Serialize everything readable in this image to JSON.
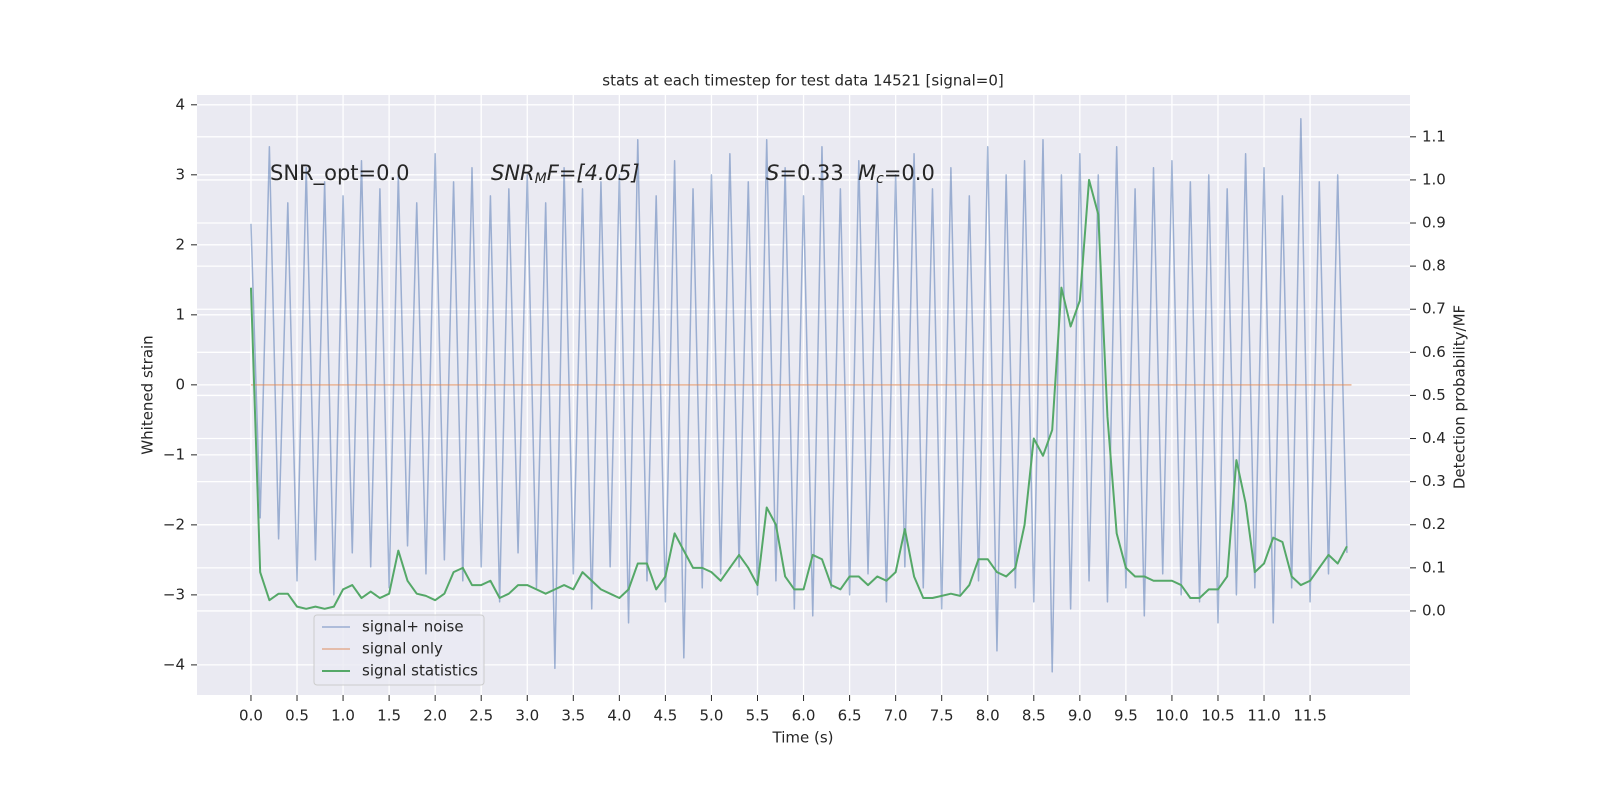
{
  "chart_data": {
    "type": "line",
    "title": "stats at each timestep for test data 14521 [signal=0]",
    "xlabel": "Time (s)",
    "ylabel": "Whitened strain",
    "y2label": "Detection probability/MF",
    "annotations": [
      [
        "SNR_opt=0.0"
      ],
      [
        "SNR",
        "M",
        "F=[4.05]"
      ],
      [
        "S",
        "=0.33"
      ],
      [
        "M",
        "c",
        "=0.0"
      ]
    ],
    "legend": "lower left",
    "grid": true,
    "xlim": [
      -0.586,
      12.585
    ],
    "ylim": [
      -4.43,
      4.14
    ],
    "y2lim": [
      -0.195,
      1.197
    ],
    "xticks": [
      {
        "value": 0,
        "label": "0.0"
      },
      0.5,
      {
        "value": 1,
        "label": "1.0"
      },
      1.5,
      {
        "value": 2,
        "label": "2.0"
      },
      2.5,
      {
        "value": 3,
        "label": "3.0"
      },
      3.5,
      {
        "value": 4,
        "label": "4.0"
      },
      4.5,
      {
        "value": 5,
        "label": "5.0"
      },
      5.5,
      {
        "value": 6,
        "label": "6.0"
      },
      6.5,
      {
        "value": 7,
        "label": "7.0"
      },
      7.5,
      {
        "value": 8,
        "label": "8.0"
      },
      8.5,
      {
        "value": 9,
        "label": "9.0"
      },
      9.5,
      {
        "value": 10,
        "label": "10.0"
      },
      10.5,
      {
        "value": 11,
        "label": "11.0"
      },
      11.5
    ],
    "yticks": [
      {
        "value": -4,
        "label": "−4"
      },
      {
        "value": -3,
        "label": "−3"
      },
      {
        "value": -2,
        "label": "−2"
      },
      {
        "value": -1,
        "label": "−1"
      },
      0,
      1,
      2,
      3,
      4
    ],
    "y2ticks": [
      {
        "value": 0,
        "label": "0.0"
      },
      0.1,
      0.2,
      0.3,
      0.4,
      0.5,
      0.6,
      0.7,
      0.8,
      0.9,
      {
        "value": 1,
        "label": "1.0"
      },
      1.1
    ],
    "x": [
      0,
      0.1,
      0.2,
      0.3,
      0.4,
      0.5,
      0.6,
      0.7,
      0.8,
      0.9,
      1,
      1.1,
      1.2,
      1.3,
      1.4,
      1.5,
      1.6,
      1.7,
      1.8,
      1.9,
      2,
      2.1,
      2.2,
      2.3,
      2.4,
      2.5,
      2.6,
      2.7,
      2.8,
      2.9,
      3,
      3.1,
      3.2,
      3.3,
      3.4,
      3.5,
      3.6,
      3.7,
      3.8,
      3.9,
      4,
      4.1,
      4.2,
      4.3,
      4.4,
      4.5,
      4.6,
      4.7,
      4.8,
      4.9,
      5,
      5.1,
      5.2,
      5.3,
      5.4,
      5.5,
      5.6,
      5.7,
      5.8,
      5.9,
      6,
      6.1,
      6.2,
      6.3,
      6.4,
      6.5,
      6.6,
      6.7,
      6.8,
      6.9,
      7,
      7.1,
      7.2,
      7.3,
      7.4,
      7.5,
      7.6,
      7.7,
      7.8,
      7.9,
      8,
      8.1,
      8.2,
      8.3,
      8.4,
      8.5,
      8.6,
      8.7,
      8.8,
      8.9,
      9,
      9.1,
      9.2,
      9.3,
      9.4,
      9.5,
      9.6,
      9.7,
      9.8,
      9.9,
      10,
      10.1,
      10.2,
      10.3,
      10.4,
      10.5,
      10.6,
      10.7,
      10.8,
      10.9,
      11,
      11.1,
      11.2,
      11.3,
      11.4,
      11.5,
      11.6,
      11.7,
      11.8,
      11.9
    ],
    "series": [
      {
        "name": "signal+ noise",
        "color": "#4c72b0",
        "values": [
          2.3,
          -1.9,
          3.4,
          -2.2,
          2.6,
          -2.8,
          3.1,
          -2.5,
          2.9,
          -3.0,
          2.7,
          -2.4,
          3.2,
          -2.6,
          2.8,
          -2.9,
          3.0,
          -2.3,
          2.6,
          -2.7,
          3.3,
          -2.5,
          2.9,
          -2.8,
          3.1,
          -2.6,
          2.7,
          -3.1,
          2.8,
          -2.4,
          3.0,
          -2.9,
          2.6,
          -4.05,
          3.1,
          -2.7,
          2.8,
          -3.2,
          2.9,
          -2.6,
          3.0,
          -3.4,
          3.5,
          -2.8,
          2.7,
          -3.1,
          3.2,
          -3.9,
          2.8,
          -2.9,
          3.0,
          -2.7,
          3.3,
          -2.6,
          2.9,
          -3.0,
          3.5,
          -2.8,
          3.1,
          -3.2,
          2.7,
          -3.3,
          3.4,
          -2.9,
          2.8,
          -3.0,
          3.2,
          -2.7,
          2.9,
          -3.1,
          3.0,
          -2.6,
          3.3,
          -2.9,
          2.8,
          -3.2,
          3.1,
          -3.0,
          2.7,
          -2.8,
          3.4,
          -3.8,
          3.0,
          -2.9,
          3.2,
          -3.1,
          3.5,
          -4.1,
          3.0,
          -3.2,
          3.3,
          -2.8,
          3.0,
          -3.1,
          3.4,
          -2.9,
          2.8,
          -3.3,
          3.1,
          -2.7,
          3.2,
          -3.0,
          2.9,
          -3.1,
          3.0,
          -3.4,
          2.8,
          -3.0,
          3.3,
          -2.9,
          3.1,
          -3.4,
          2.7,
          -2.9,
          3.8,
          -3.1,
          2.9,
          -2.7,
          3.0,
          -2.4
        ]
      },
      {
        "name": "signal only",
        "color": "#dd8452",
        "x": [
          0,
          11.95
        ],
        "values": [
          0,
          0
        ]
      },
      {
        "name": "signal statistics",
        "color": "#55a868",
        "axis": "y2",
        "values": [
          0.75,
          0.09,
          0.025,
          0.04,
          0.04,
          0.01,
          0.005,
          0.01,
          0.005,
          0.01,
          0.05,
          0.06,
          0.03,
          0.045,
          0.03,
          0.04,
          0.14,
          0.07,
          0.04,
          0.035,
          0.025,
          0.04,
          0.09,
          0.1,
          0.06,
          0.06,
          0.07,
          0.03,
          0.04,
          0.06,
          0.06,
          0.05,
          0.04,
          0.05,
          0.06,
          0.05,
          0.09,
          0.07,
          0.05,
          0.04,
          0.03,
          0.05,
          0.11,
          0.11,
          0.05,
          0.08,
          0.18,
          0.14,
          0.1,
          0.1,
          0.09,
          0.07,
          0.1,
          0.13,
          0.1,
          0.06,
          0.24,
          0.2,
          0.08,
          0.05,
          0.05,
          0.13,
          0.12,
          0.06,
          0.05,
          0.08,
          0.08,
          0.06,
          0.08,
          0.07,
          0.09,
          0.19,
          0.08,
          0.03,
          0.03,
          0.035,
          0.04,
          0.035,
          0.06,
          0.12,
          0.12,
          0.09,
          0.08,
          0.1,
          0.2,
          0.4,
          0.36,
          0.42,
          0.75,
          0.66,
          0.72,
          1.0,
          0.92,
          0.45,
          0.18,
          0.1,
          0.08,
          0.08,
          0.07,
          0.07,
          0.07,
          0.06,
          0.03,
          0.03,
          0.05,
          0.05,
          0.08,
          0.35,
          0.25,
          0.09,
          0.11,
          0.17,
          0.16,
          0.08,
          0.06,
          0.07,
          0.1,
          0.13,
          0.11,
          0.15
        ]
      }
    ]
  }
}
